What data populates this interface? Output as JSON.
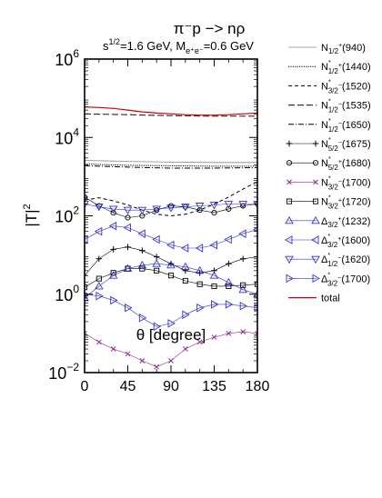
{
  "chart_data": {
    "type": "line",
    "title": "π⁻p −> nρ",
    "subtitle_parts": {
      "s": "s",
      "s_exp": "1/2",
      "s_val": "=1.6 GeV,   M",
      "m_sub": "e⁺e⁻",
      "m_val": "=0.6 GeV"
    },
    "xlabel": "θ [degree]",
    "ylabel_base": "|T|",
    "ylabel_exp": "2",
    "xlim": [
      0,
      180
    ],
    "ylim": [
      0.01,
      1000000
    ],
    "yscale": "log",
    "x_ticks": [
      {
        "value": 0,
        "label": "0"
      },
      {
        "value": 45,
        "label": "45"
      },
      {
        "value": 90,
        "label": "90"
      },
      {
        "value": 135,
        "label": "135"
      },
      {
        "value": 180,
        "label": "180"
      }
    ],
    "y_ticks": [
      {
        "value": 0.01,
        "base": "10",
        "exp": "−2"
      },
      {
        "value": 1,
        "base": "10",
        "exp": "0"
      },
      {
        "value": 100,
        "base": "10",
        "exp": "2"
      },
      {
        "value": 10000,
        "base": "10",
        "exp": "4"
      },
      {
        "value": 1000000,
        "base": "10",
        "exp": "6"
      }
    ],
    "legend_position": "right",
    "series": [
      {
        "label": "N",
        "sub": "1/2",
        "sup": "+",
        "suffix": "(940)",
        "color": "#888888",
        "dash": "",
        "width": 0.8,
        "marker": "none",
        "x": [
          0,
          45,
          90,
          135,
          180
        ],
        "y": [
          2600,
          2450,
          2350,
          2300,
          2300
        ]
      },
      {
        "label": "N",
        "sub": "1/2",
        "sup": "+",
        "star": true,
        "suffix": "(1440)",
        "color": "#000000",
        "dash": "1.2,1.2",
        "width": 1,
        "marker": "none",
        "x": [
          0,
          45,
          90,
          135,
          180
        ],
        "y": [
          2100,
          1950,
          1900,
          1850,
          1850
        ]
      },
      {
        "label": "N",
        "sub": "3/2",
        "sup": "−",
        "star": true,
        "suffix": "(1520)",
        "color": "#000000",
        "dash": "4,3",
        "width": 1,
        "marker": "none",
        "x": [
          0,
          15,
          30,
          45,
          60,
          75,
          90,
          105,
          120,
          135,
          150,
          165,
          180
        ],
        "y": [
          250,
          290,
          240,
          190,
          140,
          110,
          100,
          110,
          140,
          200,
          300,
          480,
          750
        ]
      },
      {
        "label": "N",
        "sub": "1/2",
        "sup": "−",
        "star": true,
        "suffix": "(1535)",
        "color": "#333333",
        "dash": "7,3",
        "width": 1.2,
        "marker": "none",
        "x": [
          0,
          45,
          90,
          135,
          180
        ],
        "y": [
          40000,
          38000,
          36000,
          35000,
          35000
        ]
      },
      {
        "label": "N",
        "sub": "1/2",
        "sup": "−",
        "star": true,
        "suffix": "(1650)",
        "color": "#000000",
        "dash": "6,2,1,2",
        "width": 1,
        "marker": "none",
        "x": [
          0,
          45,
          90,
          135,
          180
        ],
        "y": [
          1900,
          1750,
          1650,
          1650,
          1700
        ]
      },
      {
        "label": "N",
        "sub": "5/2",
        "sup": "−",
        "star": true,
        "suffix": "(1675)",
        "color": "#000000",
        "dash": "",
        "width": 0.6,
        "marker": "plus",
        "x": [
          0,
          15,
          30,
          45,
          60,
          75,
          90,
          105,
          120,
          135,
          150,
          165,
          180
        ],
        "y": [
          3,
          8,
          14,
          16,
          13,
          9,
          6,
          4,
          3.5,
          4,
          6,
          8,
          9
        ]
      },
      {
        "label": "N",
        "sub": "5/2",
        "sup": "+",
        "star": true,
        "suffix": "(1680)",
        "color": "#000000",
        "dash": "",
        "width": 0.6,
        "marker": "circle",
        "x": [
          0,
          15,
          30,
          45,
          60,
          75,
          90,
          105,
          120,
          135,
          150,
          165,
          180
        ],
        "y": [
          300,
          180,
          120,
          90,
          100,
          140,
          180,
          170,
          140,
          120,
          150,
          180,
          200
        ]
      },
      {
        "label": "N",
        "sub": "3/2",
        "sup": "−",
        "star": true,
        "suffix": "(1700)",
        "color": "#8B2E8B",
        "dash": "",
        "width": 0.6,
        "marker": "cross",
        "x": [
          0,
          15,
          30,
          45,
          60,
          75,
          90,
          105,
          120,
          135,
          150,
          165,
          180
        ],
        "y": [
          0.1,
          0.06,
          0.04,
          0.03,
          0.02,
          0.014,
          0.02,
          0.04,
          0.06,
          0.08,
          0.1,
          0.11,
          0.1
        ]
      },
      {
        "label": "N",
        "sub": "3/2",
        "sup": "+",
        "star": true,
        "suffix": "(1720)",
        "color": "#000000",
        "dash": "",
        "width": 0.6,
        "marker": "square",
        "x": [
          0,
          15,
          30,
          45,
          60,
          75,
          90,
          105,
          120,
          135,
          150,
          165,
          180
        ],
        "y": [
          1.5,
          2.5,
          3.5,
          4.5,
          4.5,
          4,
          3,
          2.2,
          1.8,
          1.6,
          1.6,
          1.7,
          1.8
        ]
      },
      {
        "label": "Δ",
        "sub": "3/2",
        "sup": "+",
        "suffix": "(1232)",
        "color": "#3333CC",
        "dash": "",
        "width": 0.6,
        "marker": "triangle-up",
        "x": [
          0,
          15,
          30,
          45,
          60,
          75,
          90,
          105,
          120,
          135,
          150,
          165,
          180
        ],
        "y": [
          0.8,
          1.6,
          3,
          4.5,
          5.5,
          6,
          5.5,
          5,
          4,
          3,
          2,
          1.3,
          1
        ]
      },
      {
        "label": "Δ",
        "sub": "3/2",
        "sup": "+",
        "star": true,
        "suffix": "(1600)",
        "color": "#3333CC",
        "dash": "",
        "width": 0.6,
        "marker": "triangle-left",
        "x": [
          0,
          15,
          30,
          45,
          60,
          75,
          90,
          105,
          120,
          135,
          150,
          165,
          180
        ],
        "y": [
          25,
          40,
          55,
          50,
          35,
          25,
          18,
          15,
          15,
          18,
          25,
          35,
          45
        ]
      },
      {
        "label": "Δ",
        "sub": "1/2",
        "sup": "−",
        "star": true,
        "suffix": "(1620)",
        "color": "#3333CC",
        "dash": "",
        "width": 0.6,
        "marker": "triangle-down",
        "x": [
          0,
          15,
          30,
          45,
          60,
          75,
          90,
          105,
          120,
          135,
          150,
          165,
          180
        ],
        "y": [
          200,
          170,
          150,
          140,
          140,
          150,
          160,
          170,
          180,
          190,
          200,
          200,
          200
        ]
      },
      {
        "label": "Δ",
        "sub": "3/2",
        "sup": "−",
        "star": true,
        "suffix": "(1700)",
        "color": "#3333CC",
        "dash": "",
        "width": 0.6,
        "marker": "triangle-right",
        "x": [
          0,
          15,
          30,
          45,
          60,
          75,
          90,
          105,
          120,
          135,
          150,
          165,
          180
        ],
        "y": [
          1,
          0.9,
          0.7,
          0.45,
          0.25,
          0.15,
          0.18,
          0.3,
          0.45,
          0.55,
          0.55,
          0.5,
          0.45
        ]
      },
      {
        "label": "total",
        "color": "#CC0000",
        "dash": "",
        "width": 1.2,
        "marker": "none",
        "x": [
          0,
          15,
          30,
          45,
          60,
          75,
          90,
          105,
          120,
          135,
          150,
          165,
          180
        ],
        "y": [
          60000,
          58000,
          55000,
          50000,
          45000,
          42000,
          40000,
          38000,
          37000,
          37000,
          38000,
          40000,
          42000
        ]
      }
    ]
  }
}
